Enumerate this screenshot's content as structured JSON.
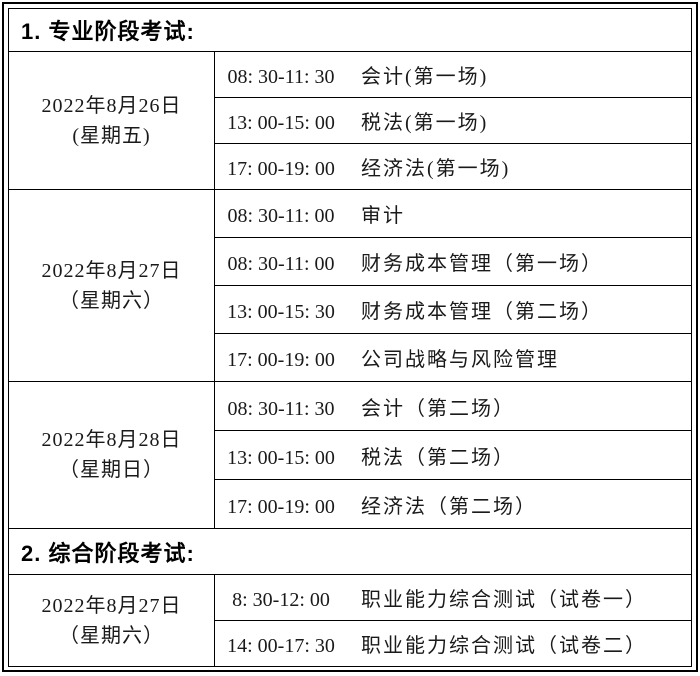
{
  "colors": {
    "border": "#000000",
    "text": "#1a1a1a",
    "background": "#ffffff"
  },
  "sections": [
    {
      "title": "1. 专业阶段考试:",
      "groups": [
        {
          "date": "2022年8月26日",
          "weekday": "(星期五)",
          "sessions": [
            {
              "time": "08: 30-11: 30",
              "subject": "会计(第一场)"
            },
            {
              "time": "13: 00-15: 00",
              "subject": "税法(第一场)"
            },
            {
              "time": "17: 00-19: 00",
              "subject": "经济法(第一场)"
            }
          ]
        },
        {
          "date": "2022年8月27日",
          "weekday": "（星期六）",
          "sessions": [
            {
              "time": "08: 30-11: 00",
              "subject": "审计"
            },
            {
              "time": "08: 30-11: 00",
              "subject": "财务成本管理（第一场）"
            },
            {
              "time": "13: 00-15: 30",
              "subject": "财务成本管理（第二场）"
            },
            {
              "time": "17: 00-19: 00",
              "subject": "公司战略与风险管理"
            }
          ]
        },
        {
          "date": "2022年8月28日",
          "weekday": "（星期日）",
          "sessions": [
            {
              "time": "08: 30-11: 30",
              "subject": "会计（第二场）"
            },
            {
              "time": "13: 00-15: 00",
              "subject": "税法（第二场）"
            },
            {
              "time": "17: 00-19: 00",
              "subject": "经济法（第二场）"
            }
          ]
        }
      ]
    },
    {
      "title": "2. 综合阶段考试:",
      "groups": [
        {
          "date": "2022年8月27日",
          "weekday": "（星期六）",
          "sessions": [
            {
              "time": "8: 30-12: 00",
              "subject": "职业能力综合测试（试卷一）"
            },
            {
              "time": "14: 00-17: 30",
              "subject": "职业能力综合测试（试卷二）"
            }
          ]
        }
      ]
    }
  ]
}
